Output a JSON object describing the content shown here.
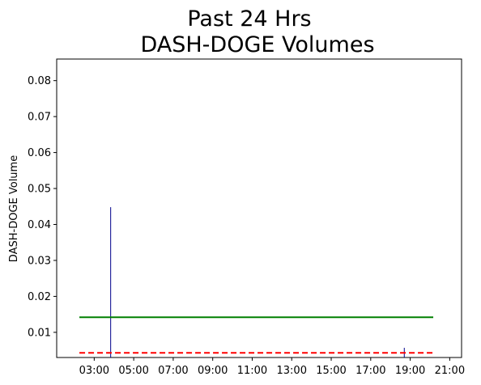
{
  "chart_data": {
    "type": "bar",
    "title": [
      "Past 24 Hrs",
      "DASH-DOGE Volumes"
    ],
    "xlabel": "",
    "ylabel": "DASH-DOGE Volume",
    "x_tick_labels": [
      "03:00",
      "05:00",
      "07:00",
      "09:00",
      "11:00",
      "13:00",
      "15:00",
      "17:00",
      "19:00",
      "21:00"
    ],
    "y_ticks": [
      0.01,
      0.02,
      0.03,
      0.04,
      0.05,
      0.06,
      0.07,
      0.08
    ],
    "y_tick_labels": [
      "0.01",
      "0.02",
      "0.03",
      "0.04",
      "0.05",
      "0.06",
      "0.07",
      "0.08"
    ],
    "ylim": [
      0.003,
      0.086
    ],
    "x_range_hours": [
      1.1,
      21.6
    ],
    "bars": [
      {
        "time": "03:50",
        "value": 0.0448,
        "color": "#00008b"
      },
      {
        "time": "18:42",
        "value": 0.0057,
        "color": "#00008b"
      }
    ],
    "reference_lines": [
      {
        "label": "",
        "value": 0.0142,
        "x_start": "02:15",
        "x_end": "20:10",
        "color": "#008000",
        "style": "solid"
      },
      {
        "label": "",
        "value": 0.0043,
        "x_start": "02:15",
        "x_end": "20:10",
        "color": "#ff0000",
        "style": "dashed"
      }
    ],
    "grid": false,
    "legend": "none"
  }
}
